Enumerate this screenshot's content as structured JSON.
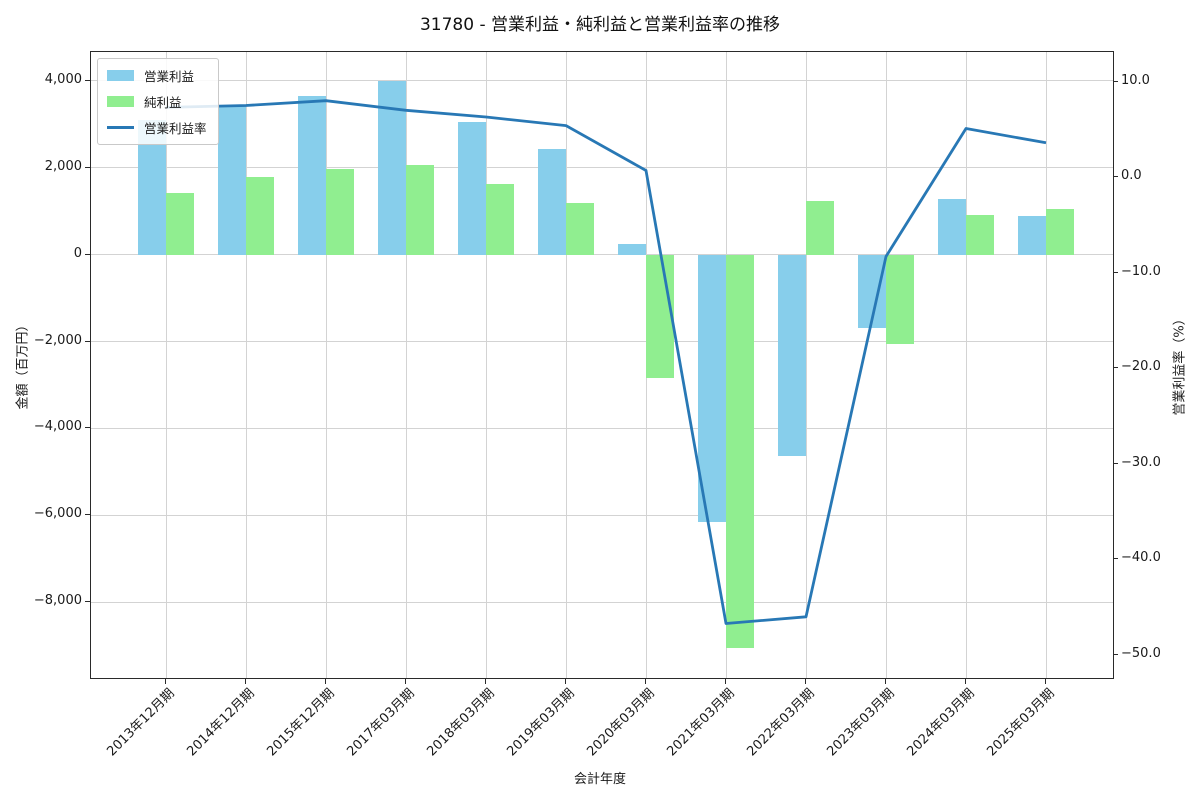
{
  "chart_data": {
    "type": "combo-bar-line",
    "title": "31780 - 営業利益・純利益と営業利益率の推移",
    "xlabel": "会計年度",
    "ylabel_left": "金額（百万円）",
    "ylabel_right": "営業利益率（%）",
    "categories": [
      "2013年12月期",
      "2014年12月期",
      "2015年12月期",
      "2017年03月期",
      "2018年03月期",
      "2019年03月期",
      "2020年03月期",
      "2021年03月期",
      "2022年03月期",
      "2023年03月期",
      "2024年03月期",
      "2025年03月期"
    ],
    "series": [
      {
        "name": "営業利益",
        "type": "bar",
        "axis": "left",
        "color": "#87ceeb",
        "values": [
          3090,
          3440,
          3650,
          4000,
          3060,
          2420,
          240,
          -6160,
          -4630,
          -1690,
          1290,
          890
        ]
      },
      {
        "name": "純利益",
        "type": "bar",
        "axis": "left",
        "color": "#90ee90",
        "values": [
          1420,
          1790,
          1960,
          2060,
          1620,
          1180,
          -2830,
          -9050,
          1230,
          -2050,
          910,
          1060
        ]
      },
      {
        "name": "営業利益率",
        "type": "line",
        "axis": "right",
        "color": "#2878b5",
        "values": [
          7.3,
          7.5,
          8.0,
          7.0,
          6.3,
          5.4,
          0.7,
          -46.7,
          -46.0,
          -8.3,
          5.1,
          3.6
        ]
      }
    ],
    "ylim_left": [
      -9740,
      4660
    ],
    "ylim_right": [
      -52.4,
      13.1
    ],
    "yticks_left": {
      "values": [
        4000,
        2000,
        0,
        -2000,
        -4000,
        -6000,
        -8000
      ],
      "labels": [
        "4,000",
        "2,000",
        "0",
        "−2,000",
        "−4,000",
        "−6,000",
        "−8,000"
      ]
    },
    "yticks_right": {
      "values": [
        10,
        0,
        -10,
        -20,
        -30,
        -40,
        -50
      ],
      "labels": [
        "10.0",
        "0.0",
        "−10.0",
        "−20.0",
        "−30.0",
        "−40.0",
        "−50.0"
      ]
    },
    "grid": true,
    "legend_position": "upper-left"
  },
  "colors": {
    "grid": "#d3d3d3",
    "spine": "#2a2a2a",
    "text": "#1a1a1a",
    "background": "#ffffff",
    "legend_border": "#c9c9c9"
  }
}
